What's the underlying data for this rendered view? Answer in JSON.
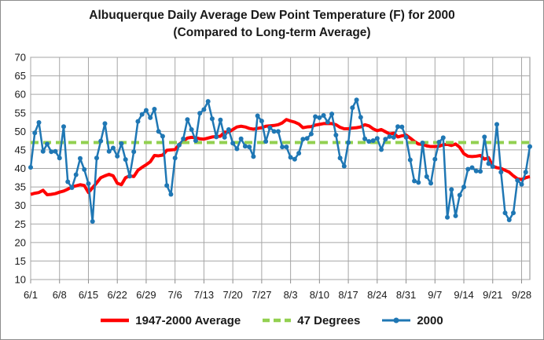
{
  "chart_data": {
    "type": "line",
    "title_line1": "Albuquerque Daily Average Dew Point Temperature (F) for 2000",
    "title_line2": "(Compared to Long-term Average)",
    "ylim": [
      10,
      70
    ],
    "yticks": [
      10,
      15,
      20,
      25,
      30,
      35,
      40,
      45,
      50,
      55,
      60,
      65,
      70
    ],
    "xticks": [
      {
        "label": "6/1",
        "day": 0
      },
      {
        "label": "6/8",
        "day": 7
      },
      {
        "label": "6/15",
        "day": 14
      },
      {
        "label": "6/22",
        "day": 21
      },
      {
        "label": "6/29",
        "day": 28
      },
      {
        "label": "7/6",
        "day": 35
      },
      {
        "label": "7/13",
        "day": 42
      },
      {
        "label": "7/20",
        "day": 49
      },
      {
        "label": "7/27",
        "day": 56
      },
      {
        "label": "8/3",
        "day": 63
      },
      {
        "label": "8/10",
        "day": 70
      },
      {
        "label": "8/17",
        "day": 77
      },
      {
        "label": "8/24",
        "day": 84
      },
      {
        "label": "8/31",
        "day": 91
      },
      {
        "label": "9/7",
        "day": 98
      },
      {
        "label": "9/14",
        "day": 105
      },
      {
        "label": "9/21",
        "day": 112
      },
      {
        "label": "9/28",
        "day": 119
      }
    ],
    "grid": true,
    "legend_position": "bottom",
    "series": [
      {
        "name": "1947-2000 Average",
        "color": "#ff0000",
        "style": "solid",
        "values": [
          33,
          33.3,
          33.5,
          34.1,
          32.9,
          33,
          33.2,
          33.6,
          33.9,
          34.4,
          35,
          35.3,
          35.6,
          35.4,
          33.5,
          34.8,
          36.1,
          37.5,
          38,
          38.4,
          38,
          36,
          35.6,
          37.5,
          38,
          37.8,
          39.5,
          40.3,
          41,
          41.8,
          43.5,
          43.4,
          43.6,
          44.9,
          45,
          45.1,
          46.5,
          47.4,
          48.2,
          48.4,
          48.3,
          48,
          47.9,
          48.2,
          48.5,
          48.6,
          48.7,
          49.8,
          49.8,
          50.5,
          51.2,
          51.4,
          51.2,
          50.8,
          50.6,
          50.8,
          51,
          51.4,
          51.5,
          51.6,
          51.8,
          52.3,
          53.2,
          52.8,
          52.5,
          52,
          51,
          51.2,
          51.3,
          51.7,
          51.9,
          52.1,
          52.1,
          52.1,
          51.8,
          51.1,
          50.7,
          50.7,
          50.9,
          51,
          51.2,
          51.8,
          51.5,
          50.7,
          50.2,
          50.5,
          49.9,
          49.3,
          49.5,
          48.5,
          48.8,
          49,
          48.2,
          47.3,
          46.6,
          46.5,
          46.1,
          45.9,
          45.9,
          46,
          46.4,
          46.5,
          46.2,
          46.6,
          45.7,
          44,
          43.3,
          43.2,
          43.3,
          43.5,
          42.5,
          42.9,
          40.6,
          40.2,
          40,
          39.5,
          39,
          38,
          37.2,
          37,
          37.5,
          37.8
        ]
      },
      {
        "name": "47 Degrees",
        "color": "#92d050",
        "style": "dashed",
        "values": [
          47,
          47
        ]
      },
      {
        "name": "2000",
        "color": "#1f77b4",
        "style": "solid-markers",
        "values": [
          40.3,
          49.6,
          52.4,
          44.6,
          46.6,
          44.5,
          44.6,
          42.8,
          51.3,
          36.4,
          34.8,
          38.3,
          42.7,
          39.7,
          35.9,
          25.7,
          42.8,
          47.4,
          52.1,
          44.6,
          45.5,
          43.3,
          46.7,
          42.4,
          37.9,
          44.5,
          52.7,
          54.6,
          55.7,
          53.7,
          56,
          50,
          48.7,
          35.4,
          33,
          42.8,
          46.3,
          48,
          53.2,
          50.5,
          47.5,
          54.9,
          55.9,
          58.1,
          53.4,
          48.5,
          53.1,
          48.4,
          50.5,
          46.8,
          45.3,
          48,
          46,
          45.8,
          43.2,
          54.2,
          52.8,
          47.3,
          51,
          50,
          50,
          45.8,
          45.8,
          43,
          42.5,
          44.1,
          47.9,
          48.1,
          49.3,
          54,
          53.7,
          54.3,
          52.5,
          54.7,
          49,
          42.8,
          40.6,
          47,
          56.4,
          58.5,
          53.8,
          48,
          47.3,
          47.5,
          48.1,
          45.1,
          47.9,
          48.6,
          48.4,
          51.3,
          51.2,
          48.4,
          42.3,
          36.6,
          36.2,
          46.9,
          37.8,
          36,
          42.5,
          47.1,
          48.3,
          26.8,
          34.3,
          27.2,
          32.8,
          35,
          39.8,
          40.2,
          39.3,
          39.2,
          48.5,
          41.3,
          40.5,
          51.9,
          39,
          28,
          26.1,
          28,
          36.8,
          35.7,
          39,
          45.9
        ]
      }
    ]
  }
}
